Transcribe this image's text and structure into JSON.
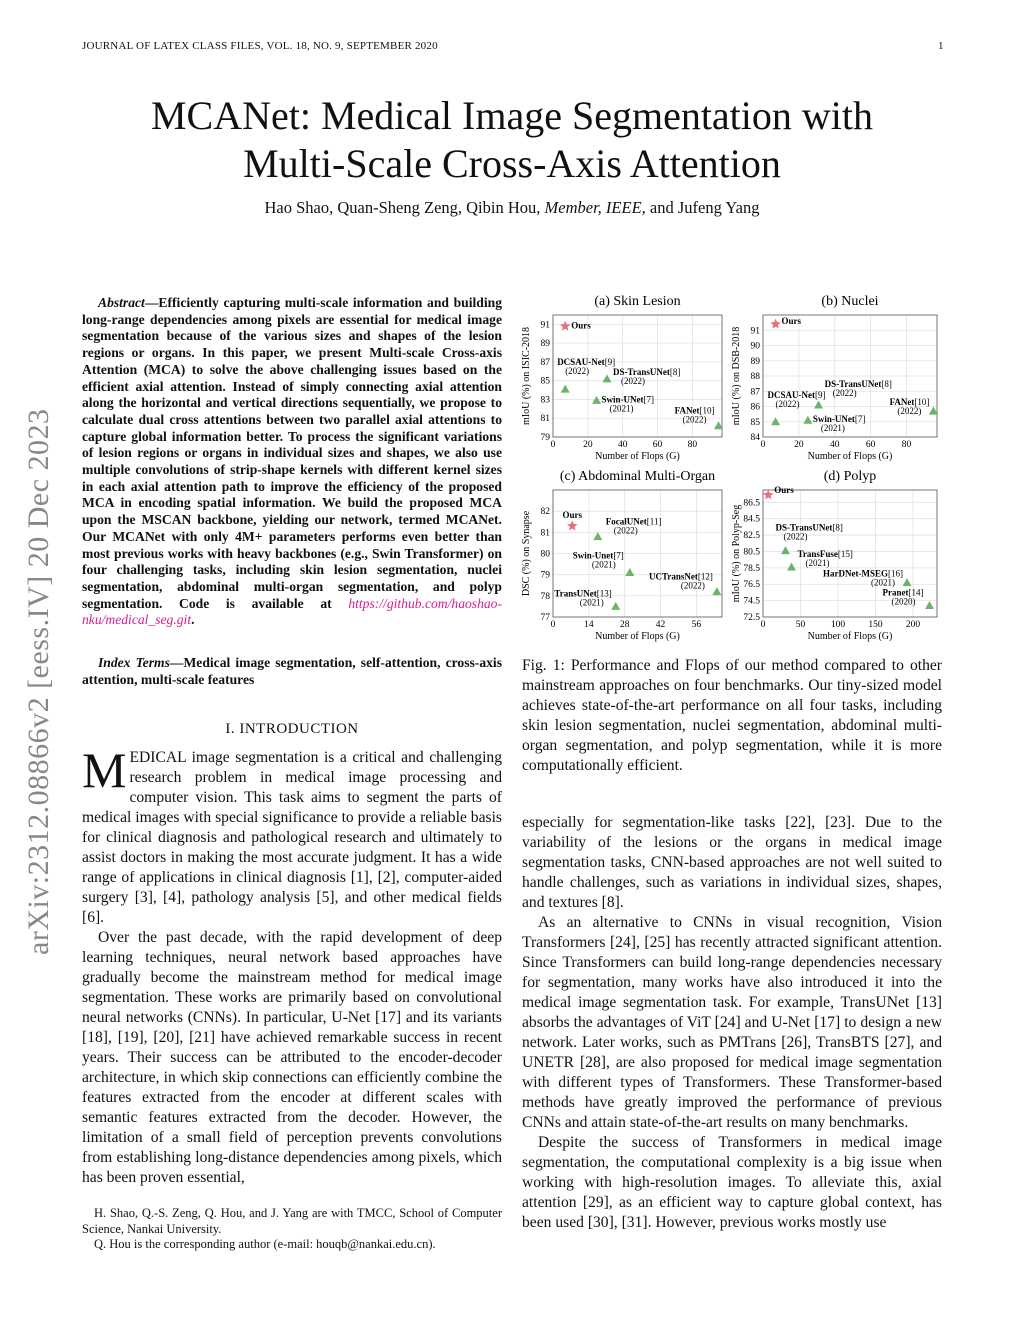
{
  "header": {
    "journal": "JOURNAL OF LATEX CLASS FILES, VOL. 18, NO. 9, SEPTEMBER 2020",
    "page": "1"
  },
  "arxiv_stamp": "arXiv:2312.08866v2  [eess.IV]  20 Dec 2023",
  "title_line1": "MCANet: Medical Image Segmentation with",
  "title_line2": "Multi-Scale Cross-Axis Attention",
  "authors_pre": "Hao Shao, Quan-Sheng Zeng, Qibin Hou, ",
  "authors_member": "Member, IEEE",
  "authors_post": ", and Jufeng Yang",
  "abstract": {
    "label": "Abstract",
    "text": "—Efficiently capturing multi-scale information and building long-range dependencies among pixels are essential for medical image segmentation because of the various sizes and shapes of the lesion regions or organs. In this paper, we present Multi-scale Cross-axis Attention (MCA) to solve the above challenging issues based on the efficient axial attention. Instead of simply connecting axial attention along the horizontal and vertical directions sequentially, we propose to calculate dual cross attentions between two parallel axial attentions to capture global information better. To process the significant variations of lesion regions or organs in individual sizes and shapes, we also use multiple convolutions of strip-shape kernels with different kernel sizes in each axial attention path to improve the efficiency of the proposed MCA in encoding spatial information. We build the proposed MCA upon the MSCAN backbone, yielding our network, termed MCANet. Our MCANet with only 4M+ parameters performs even better than most previous works with heavy backbones (e.g., Swin Transformer) on four challenging tasks, including skin lesion segmentation, nuclei segmentation, abdominal multi-organ segmentation, and polyp segmentation. Code is available at ",
    "link": "https://github.com/haoshao-nku/medical_seg.git",
    "end": "."
  },
  "index_terms": {
    "label": "Index Terms",
    "text": "—Medical image segmentation, self-attention, cross-axis attention, multi-scale features"
  },
  "section": "I. INTRODUCTION",
  "intro": {
    "dropcap": "M",
    "p1": "EDICAL image segmentation is a critical and challenging research problem in medical image processing and computer vision. This task aims to segment the parts of medical images with special significance to provide a reliable basis for clinical diagnosis and pathological research and ultimately to assist doctors in making the most accurate judgment. It has a wide range of applications in clinical diagnosis [1], [2], computer-aided surgery [3], [4], pathology analysis [5], and other medical fields [6].",
    "p2": "Over the past decade, with the rapid development of deep learning techniques, neural network based approaches have gradually become the mainstream method for medical image segmentation. These works are primarily based on convolutional neural networks (CNNs). In particular, U-Net [17] and its variants [18], [19], [20], [21] have achieved remarkable success in recent years. Their success can be attributed to the encoder-decoder architecture, in which skip connections can efficiently combine the features extracted from the encoder at different scales with semantic features extracted from the decoder. However, the limitation of a small field of perception prevents convolutions from establishing long-distance dependencies among pixels, which has been proven essential,"
  },
  "footnotes": [
    "H. Shao, Q.-S. Zeng, Q. Hou, and J. Yang are with TMCC, School of Computer Science, Nankai University.",
    "Q. Hou is the corresponding author (e-mail: houqb@nankai.edu.cn)."
  ],
  "caption": "Fig. 1: Performance and Flops of our method compared to other mainstream approaches on four benchmarks. Our tiny-sized model achieves state-of-the-art performance on all four tasks, including skin lesion segmentation, nuclei segmentation, abdominal multi-organ segmentation, and polyp segmentation, while it is more computationally efficient.",
  "right_body": {
    "p1": "especially for segmentation-like tasks [22], [23]. Due to the variability of the lesions or the organs in medical image segmentation tasks, CNN-based approaches are not well suited to handle challenges, such as variations in individual sizes, shapes, and textures [8].",
    "p2": "As an alternative to CNNs in visual recognition, Vision Transformers [24], [25] has recently attracted significant attention. Since Transformers can build long-range dependencies necessary for segmentation, many works have also introduced it into the medical image segmentation task. For example, TransUNet [13] absorbs the advantages of ViT [24] and U-Net [17] to design a new network. Later works, such as PMTrans [26], TransBTS [27], and UNETR [28], are also proposed for medical image segmentation with different types of Transformers. These Transformer-based methods have greatly improved the performance of previous CNNs and attain state-of-the-art results on many benchmarks.",
    "p3": "Despite the success of Transformers in medical image segmentation, the computational complexity is a big issue when working with high-resolution images. To alleviate this, axial attention [29], as an efficient way to capture global context, has been used [30], [31]. However, previous works mostly use"
  },
  "chart_data": [
    {
      "type": "scatter",
      "title": "(a) Skin Lesion",
      "xlabel": "Number of Flops (G)",
      "ylabel": "mIoU (%) on ISIC-2018",
      "xlim": [
        0,
        97
      ],
      "ylim": [
        79,
        92
      ],
      "xticks": [
        0,
        20,
        40,
        60,
        80
      ],
      "yticks": [
        79,
        81,
        83,
        85,
        87,
        89,
        91
      ],
      "grid": true,
      "points": [
        {
          "name": "Ours",
          "ref": "",
          "year": "",
          "x": 7,
          "y": 90.8,
          "marker": "star"
        },
        {
          "name": "DCSAU-Net",
          "ref": "[9]",
          "year": "(2022)",
          "x": 7,
          "y": 84.1,
          "marker": "triangle"
        },
        {
          "name": "DS-TransUNet",
          "ref": "[8]",
          "year": "(2022)",
          "x": 31,
          "y": 85.2,
          "marker": "triangle"
        },
        {
          "name": "Swin-UNet",
          "ref": "[7]",
          "year": "(2021)",
          "x": 25,
          "y": 82.9,
          "marker": "triangle"
        },
        {
          "name": "FANet",
          "ref": "[10]",
          "year": "(2022)",
          "x": 95,
          "y": 80.2,
          "marker": "triangle"
        }
      ]
    },
    {
      "type": "scatter",
      "title": "(b) Nuclei",
      "xlabel": "Number of Flops (G)",
      "ylabel": "mIoU (%) on DSB-2018",
      "xlim": [
        0,
        97
      ],
      "ylim": [
        84,
        92
      ],
      "xticks": [
        0,
        20,
        40,
        60,
        80
      ],
      "yticks": [
        84,
        85,
        86,
        87,
        88,
        89,
        90,
        91
      ],
      "grid": true,
      "points": [
        {
          "name": "Ours",
          "ref": "",
          "year": "",
          "x": 7,
          "y": 91.4,
          "marker": "star"
        },
        {
          "name": "DCSAU-Net",
          "ref": "[9]",
          "year": "(2022)",
          "x": 7,
          "y": 85.0,
          "marker": "triangle"
        },
        {
          "name": "DS-TransUNet",
          "ref": "[8]",
          "year": "(2022)",
          "x": 31,
          "y": 86.1,
          "marker": "triangle"
        },
        {
          "name": "Swin-UNet",
          "ref": "[7]",
          "year": "(2021)",
          "x": 25,
          "y": 85.1,
          "marker": "triangle"
        },
        {
          "name": "FANet",
          "ref": "[10]",
          "year": "(2022)",
          "x": 95,
          "y": 85.7,
          "marker": "triangle"
        }
      ]
    },
    {
      "type": "scatter",
      "title": "(c) Abdominal Multi-Organ",
      "xlabel": "Number of Flops (G)",
      "ylabel": "DSC (%) on Synapse",
      "xlim": [
        0,
        66
      ],
      "ylim": [
        77,
        83
      ],
      "xticks": [
        0,
        14,
        28,
        42,
        56
      ],
      "yticks": [
        77,
        78,
        79,
        80,
        81,
        82
      ],
      "grid": true,
      "points": [
        {
          "name": "Ours",
          "ref": "",
          "year": "",
          "x": 7.5,
          "y": 81.3,
          "marker": "star"
        },
        {
          "name": "FocalUNet",
          "ref": "[11]",
          "year": "(2022)",
          "x": 17.5,
          "y": 80.8,
          "marker": "triangle"
        },
        {
          "name": "Swin-Unet",
          "ref": "[7]",
          "year": "(2021)",
          "x": 30,
          "y": 79.1,
          "marker": "triangle"
        },
        {
          "name": "UCTransNet",
          "ref": "[12]",
          "year": "(2022)",
          "x": 64,
          "y": 78.2,
          "marker": "triangle"
        },
        {
          "name": "TransUNet",
          "ref": "[13]",
          "year": "(2021)",
          "x": 24.5,
          "y": 77.5,
          "marker": "triangle"
        }
      ]
    },
    {
      "type": "scatter",
      "title": "(d) Polyp",
      "xlabel": "Number of Flops (G)",
      "ylabel": "mIoU (%) on Polyp-Seg",
      "xlim": [
        0,
        232
      ],
      "ylim": [
        72.5,
        88
      ],
      "xticks": [
        0,
        50,
        100,
        150,
        200
      ],
      "yticks": [
        72.5,
        74.5,
        76.5,
        78.5,
        80.5,
        82.5,
        84.5,
        86.5
      ],
      "grid": true,
      "points": [
        {
          "name": "Ours",
          "ref": "",
          "year": "",
          "x": 7,
          "y": 87.4,
          "marker": "star"
        },
        {
          "name": "DS-TransUNet",
          "ref": "[8]",
          "year": "(2022)",
          "x": 30,
          "y": 80.6,
          "marker": "triangle"
        },
        {
          "name": "TransFuse",
          "ref": "[15]",
          "year": "(2021)",
          "x": 38,
          "y": 78.6,
          "marker": "triangle"
        },
        {
          "name": "HarDNet-MSEG",
          "ref": "[16]",
          "year": "(2021)",
          "x": 192,
          "y": 76.7,
          "marker": "triangle"
        },
        {
          "name": "Pranet",
          "ref": "[14]",
          "year": "(2020)",
          "x": 222,
          "y": 73.9,
          "marker": "triangle"
        }
      ]
    }
  ],
  "colors": {
    "ours": "#e8707a",
    "others": "#6db36d",
    "link": "#d0208a",
    "grid": "#e2e2e2"
  }
}
